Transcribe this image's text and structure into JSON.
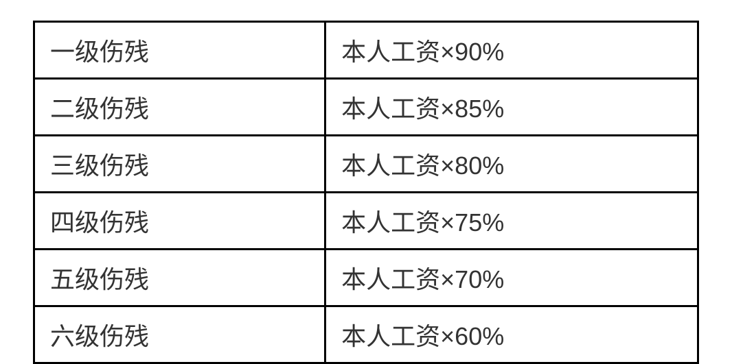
{
  "table": {
    "type": "table",
    "border_color": "#000000",
    "border_width": 3,
    "background_color": "#ffffff",
    "text_color": "#333333",
    "font_size": 36,
    "columns": [
      {
        "key": "level",
        "width_percent": 44,
        "align": "left"
      },
      {
        "key": "formula",
        "width_percent": 56,
        "align": "left"
      }
    ],
    "rows": [
      {
        "level": "一级伤残",
        "formula": "本人工资×90%"
      },
      {
        "level": "二级伤残",
        "formula": "本人工资×85%"
      },
      {
        "level": "三级伤残",
        "formula": "本人工资×80%"
      },
      {
        "level": "四级伤残",
        "formula": "本人工资×75%"
      },
      {
        "level": "五级伤残",
        "formula": "本人工资×70%"
      },
      {
        "level": "六级伤残",
        "formula": "本人工资×60%"
      }
    ]
  }
}
